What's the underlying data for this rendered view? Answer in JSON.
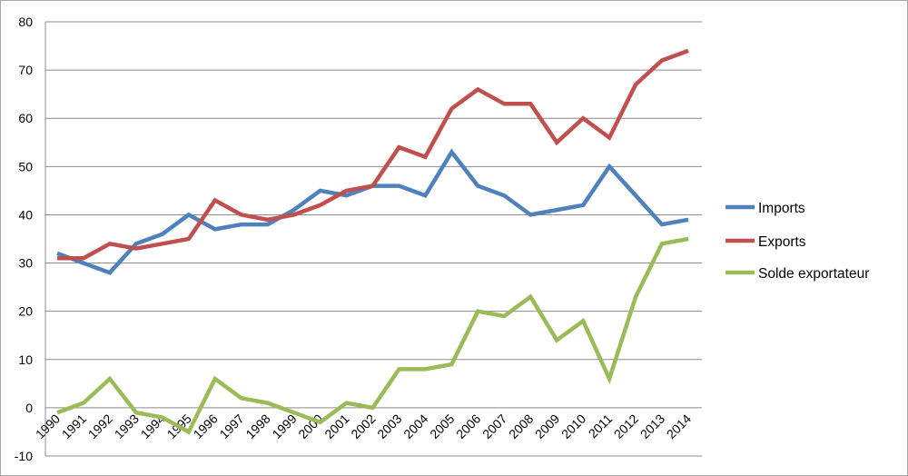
{
  "chart_data": {
    "type": "line",
    "title": "",
    "xlabel": "",
    "ylabel": "",
    "categories": [
      "1990",
      "1991",
      "1992",
      "1993",
      "1994",
      "1995",
      "1996",
      "1997",
      "1998",
      "1999",
      "2000",
      "2001",
      "2002",
      "2003",
      "2004",
      "2005",
      "2006",
      "2007",
      "2008",
      "2009",
      "2010",
      "2011",
      "2012",
      "2013",
      "2014"
    ],
    "y_ticks": [
      "80",
      "70",
      "60",
      "50",
      "40",
      "30",
      "20",
      "10",
      "0",
      "-10"
    ],
    "ylim": [
      -10,
      80
    ],
    "grid": true,
    "legend_position": "right",
    "series": [
      {
        "name": "Imports",
        "color": "#4f81bd",
        "values": [
          32,
          30,
          28,
          34,
          36,
          40,
          37,
          38,
          38,
          41,
          45,
          44,
          46,
          46,
          44,
          53,
          46,
          44,
          40,
          41,
          42,
          50,
          44,
          38,
          39
        ]
      },
      {
        "name": "Exports",
        "color": "#c0504d",
        "values": [
          31,
          31,
          34,
          33,
          34,
          35,
          43,
          40,
          39,
          40,
          42,
          45,
          46,
          54,
          52,
          62,
          66,
          63,
          63,
          55,
          60,
          56,
          67,
          72,
          74
        ]
      },
      {
        "name": "Solde exportateur",
        "color": "#9bbb59",
        "values": [
          -1,
          1,
          6,
          -1,
          -2,
          -5,
          6,
          2,
          1,
          -1,
          -3,
          1,
          0,
          8,
          8,
          9,
          20,
          19,
          23,
          14,
          18,
          6,
          23,
          34,
          35
        ]
      }
    ]
  }
}
